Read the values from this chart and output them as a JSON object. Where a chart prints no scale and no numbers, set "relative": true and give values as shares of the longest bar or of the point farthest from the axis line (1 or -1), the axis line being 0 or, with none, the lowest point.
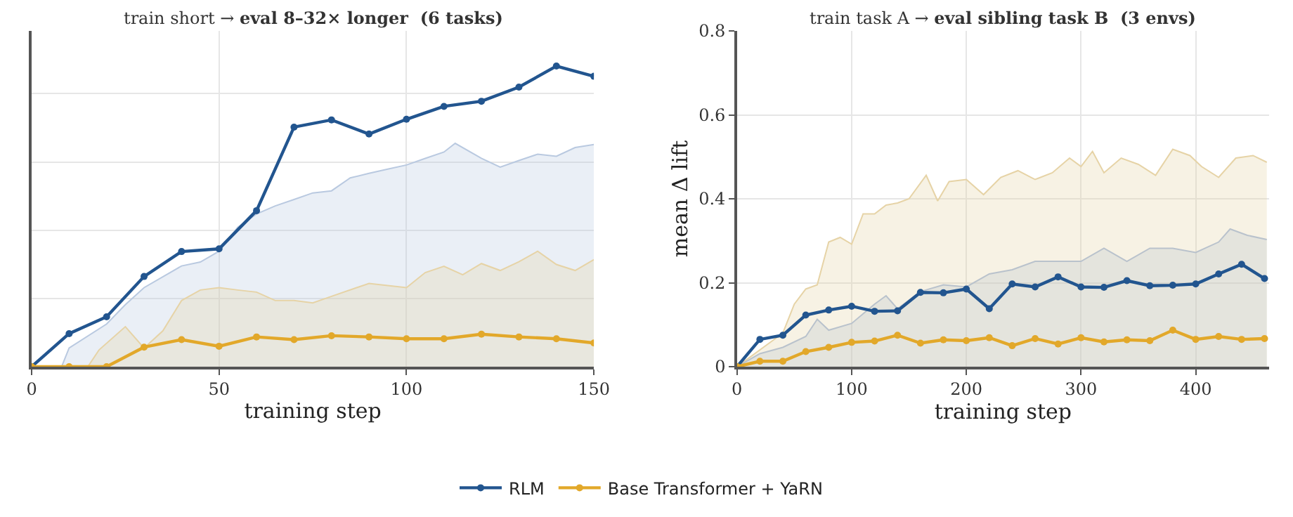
{
  "chart_data": [
    {
      "type": "line",
      "title": "train short → eval 8–32× longer  (6 tasks)",
      "xlabel": "training step",
      "relative": true,
      "xlim": [
        0,
        150
      ],
      "xticks": [
        0,
        50,
        100,
        150
      ],
      "grid": true,
      "legend": "bottom",
      "marker": "circle",
      "line_style": "solid",
      "x": [
        0,
        10,
        20,
        30,
        40,
        50,
        60,
        70,
        80,
        90,
        100,
        110,
        120,
        130,
        140,
        150
      ],
      "series": [
        {
          "type": "area",
          "color": "#b9c9e0",
          "marker": "none",
          "x": [
            8,
            10,
            20,
            25,
            30,
            40,
            45,
            50,
            55,
            60,
            65,
            70,
            75,
            80,
            85,
            90,
            95,
            100,
            105,
            110,
            113,
            120,
            125,
            130,
            135,
            140,
            145,
            150
          ],
          "values": [
            0,
            0.062,
            0.142,
            0.206,
            0.263,
            0.335,
            0.348,
            0.384,
            0.464,
            0.508,
            0.535,
            0.556,
            0.578,
            0.585,
            0.628,
            0.643,
            0.657,
            0.671,
            0.693,
            0.714,
            0.743,
            0.693,
            0.664,
            0.686,
            0.707,
            0.7,
            0.729,
            0.739
          ]
        },
        {
          "type": "area",
          "color": "#e6d3a6",
          "marker": "none",
          "x": [
            15,
            18,
            25,
            30,
            35,
            40,
            45,
            50,
            55,
            60,
            65,
            70,
            75,
            80,
            90,
            95,
            100,
            105,
            110,
            115,
            120,
            125,
            130,
            135,
            140,
            145,
            150
          ],
          "values": [
            0,
            0.056,
            0.133,
            0.062,
            0.119,
            0.22,
            0.255,
            0.263,
            0.255,
            0.248,
            0.22,
            0.22,
            0.212,
            0.234,
            0.277,
            0.27,
            0.263,
            0.313,
            0.334,
            0.306,
            0.343,
            0.32,
            0.349,
            0.384,
            0.34,
            0.32,
            0.356
          ]
        },
        {
          "name": "RLM",
          "color": "#22558f",
          "values": [
            0,
            0.11,
            0.166,
            0.3,
            0.383,
            0.392,
            0.519,
            0.797,
            0.821,
            0.774,
            0.823,
            0.866,
            0.883,
            0.93,
            1.0,
            0.966
          ]
        },
        {
          "name": "Base Transformer + YaRN",
          "color": "#e2a82a",
          "values": [
            0,
            0,
            0,
            0.065,
            0.09,
            0.068,
            0.099,
            0.09,
            0.103,
            0.099,
            0.093,
            0.093,
            0.108,
            0.099,
            0.093,
            0.079
          ]
        }
      ]
    },
    {
      "type": "line",
      "title": "train task A → eval sibling task B  (3 envs)",
      "xlabel": "training step",
      "ylabel": "mean Δ lift",
      "xlim": [
        0,
        464
      ],
      "xticks": [
        0,
        100,
        200,
        300,
        400
      ],
      "ylim": [
        0,
        0.8
      ],
      "yticks": [
        0,
        0.2,
        0.4,
        0.6,
        0.8
      ],
      "grid": true,
      "marker": "circle",
      "line_style": "solid",
      "x": [
        0,
        20,
        40,
        60,
        80,
        100,
        120,
        140,
        160,
        180,
        200,
        220,
        240,
        260,
        280,
        300,
        320,
        340,
        360,
        380,
        400,
        420,
        440,
        460
      ],
      "series": [
        {
          "type": "area",
          "color": "#e6d3a6",
          "marker": "none",
          "x": [
            0,
            40,
            50,
            60,
            70,
            80,
            90,
            100,
            110,
            120,
            130,
            140,
            150,
            165,
            175,
            185,
            200,
            215,
            230,
            245,
            260,
            275,
            290,
            300,
            310,
            320,
            335,
            350,
            365,
            380,
            395,
            405,
            420,
            435,
            450,
            462
          ],
          "values": [
            0,
            0.08,
            0.149,
            0.185,
            0.195,
            0.297,
            0.308,
            0.292,
            0.364,
            0.364,
            0.385,
            0.39,
            0.4,
            0.456,
            0.395,
            0.441,
            0.446,
            0.41,
            0.451,
            0.467,
            0.446,
            0.462,
            0.497,
            0.477,
            0.513,
            0.462,
            0.497,
            0.482,
            0.456,
            0.518,
            0.503,
            0.477,
            0.451,
            0.497,
            0.503,
            0.487
          ]
        },
        {
          "type": "area",
          "color": "#b9c2cc",
          "marker": "none",
          "x": [
            0,
            20,
            40,
            60,
            70,
            80,
            100,
            120,
            130,
            140,
            160,
            180,
            200,
            220,
            240,
            260,
            280,
            300,
            320,
            340,
            360,
            380,
            400,
            420,
            430,
            445,
            462
          ],
          "values": [
            0,
            0.031,
            0.046,
            0.072,
            0.113,
            0.087,
            0.103,
            0.149,
            0.169,
            0.138,
            0.179,
            0.195,
            0.19,
            0.221,
            0.231,
            0.251,
            0.251,
            0.251,
            0.282,
            0.251,
            0.282,
            0.282,
            0.272,
            0.297,
            0.328,
            0.313,
            0.303
          ]
        },
        {
          "name": "RLM",
          "color": "#22558f",
          "values": [
            0,
            0.065,
            0.075,
            0.123,
            0.135,
            0.144,
            0.132,
            0.133,
            0.177,
            0.176,
            0.185,
            0.138,
            0.197,
            0.19,
            0.214,
            0.19,
            0.189,
            0.205,
            0.193,
            0.194,
            0.197,
            0.221,
            0.244,
            0.21
          ]
        },
        {
          "name": "Base Transformer + YaRN",
          "color": "#e2a82a",
          "values": [
            0,
            0.013,
            0.013,
            0.036,
            0.046,
            0.058,
            0.061,
            0.075,
            0.056,
            0.064,
            0.062,
            0.069,
            0.05,
            0.067,
            0.054,
            0.069,
            0.059,
            0.064,
            0.062,
            0.087,
            0.065,
            0.072,
            0.065,
            0.067
          ]
        }
      ]
    }
  ]
}
